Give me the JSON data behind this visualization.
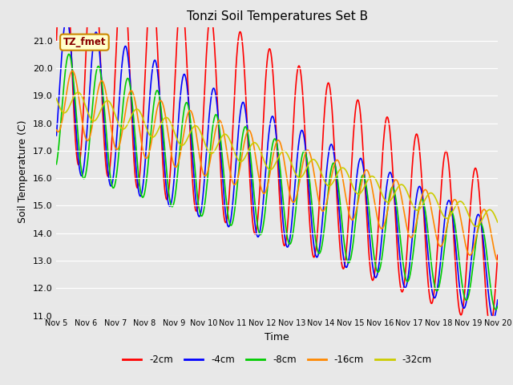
{
  "title": "Tonzi Soil Temperatures Set B",
  "xlabel": "Time",
  "ylabel": "Soil Temperature (C)",
  "ylim": [
    11.0,
    21.5
  ],
  "yticks": [
    11.0,
    12.0,
    13.0,
    14.0,
    15.0,
    16.0,
    17.0,
    18.0,
    19.0,
    20.0,
    21.0
  ],
  "xtick_labels": [
    "Nov 5",
    "Nov 6",
    "Nov 7",
    "Nov 8",
    "Nov 9",
    "Nov 10",
    "Nov 11",
    "Nov 12",
    "Nov 13",
    "Nov 14",
    "Nov 15",
    "Nov 16",
    "Nov 17",
    "Nov 18",
    "Nov 19",
    "Nov 20"
  ],
  "series_labels": [
    "-2cm",
    "-4cm",
    "-8cm",
    "-16cm",
    "-32cm"
  ],
  "series_colors": [
    "#ff0000",
    "#0000ff",
    "#00cc00",
    "#ff8800",
    "#cccc00"
  ],
  "line_widths": [
    1.2,
    1.2,
    1.2,
    1.2,
    1.2
  ],
  "legend_label": "TZ_fmet",
  "legend_box_color": "#ffffcc",
  "legend_box_edge": "#cc8800",
  "legend_text_color": "#880000",
  "bg_color": "#e8e8e8",
  "n_days": 15,
  "points_per_day": 96,
  "trend_starts": [
    21.0,
    19.2,
    18.5,
    18.9,
    18.9
  ],
  "trend_rates": [
    0.52,
    0.44,
    0.39,
    0.34,
    0.3
  ],
  "amp_starts": [
    4.2,
    2.8,
    2.2,
    1.2,
    0.45
  ],
  "amp_rates": [
    0.1,
    0.07,
    0.05,
    0.02,
    0.005
  ],
  "amp_mins": [
    1.2,
    1.0,
    0.8,
    0.6,
    0.3
  ],
  "phase_offsets": [
    0.0,
    0.1,
    0.18,
    0.3,
    0.5
  ]
}
